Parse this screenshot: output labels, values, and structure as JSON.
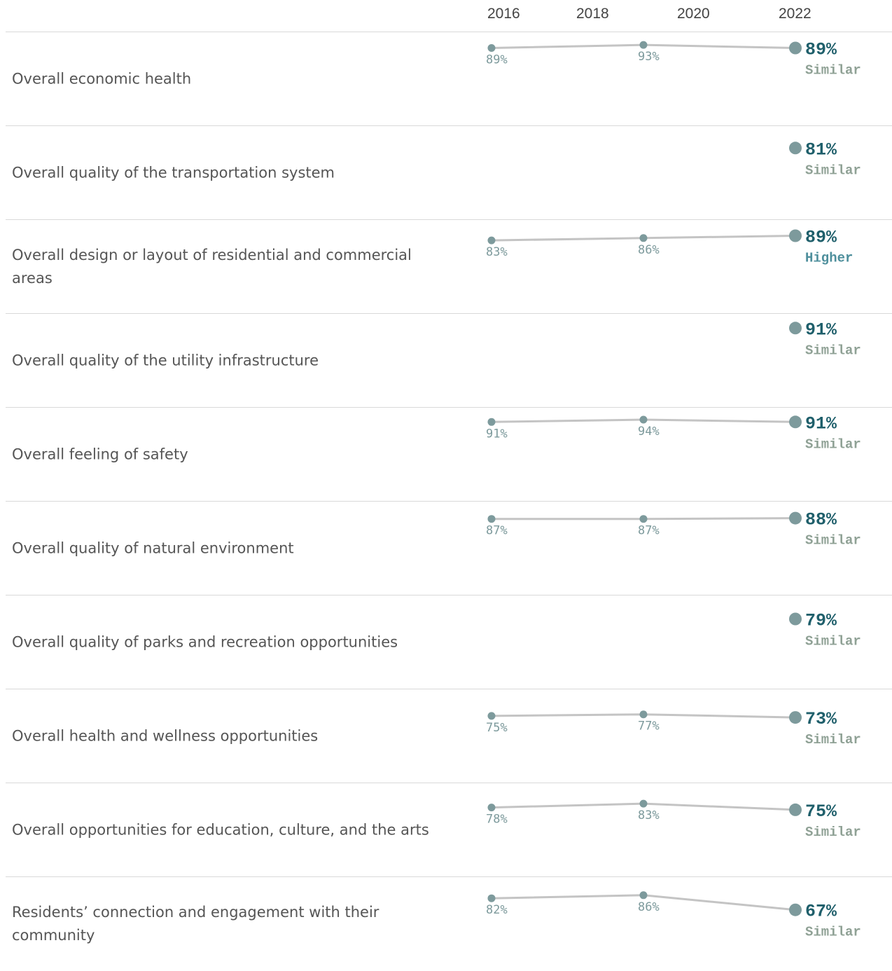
{
  "chart_data": {
    "type": "line",
    "x": [
      "2016",
      "2019",
      "2022"
    ],
    "x_tick_labels": [
      "2016",
      "2018",
      "2020",
      "2022"
    ],
    "rows": [
      {
        "label": "Overall economic health",
        "values": [
          89,
          93,
          89
        ],
        "value_labels": [
          "89%",
          "93%",
          "89%"
        ],
        "comparison": "Similar"
      },
      {
        "label": "Overall quality of the transportation system",
        "values": [
          null,
          null,
          81
        ],
        "value_labels": [
          null,
          null,
          "81%"
        ],
        "comparison": "Similar"
      },
      {
        "label": "Overall design or layout of residential and commercial areas",
        "values": [
          83,
          86,
          89
        ],
        "value_labels": [
          "83%",
          "86%",
          "89%"
        ],
        "comparison": "Higher"
      },
      {
        "label": "Overall quality of the utility infrastructure",
        "values": [
          null,
          null,
          91
        ],
        "value_labels": [
          null,
          null,
          "91%"
        ],
        "comparison": "Similar"
      },
      {
        "label": "Overall feeling of safety",
        "values": [
          91,
          94,
          91
        ],
        "value_labels": [
          "91%",
          "94%",
          "91%"
        ],
        "comparison": "Similar"
      },
      {
        "label": "Overall quality of natural environment",
        "values": [
          87,
          87,
          88
        ],
        "value_labels": [
          "87%",
          "87%",
          "88%"
        ],
        "comparison": "Similar"
      },
      {
        "label": "Overall quality of parks and recreation opportunities",
        "values": [
          null,
          null,
          79
        ],
        "value_labels": [
          null,
          null,
          "79%"
        ],
        "comparison": "Similar"
      },
      {
        "label": "Overall health and wellness opportunities",
        "values": [
          75,
          77,
          73
        ],
        "value_labels": [
          "75%",
          "77%",
          "73%"
        ],
        "comparison": "Similar"
      },
      {
        "label": "Overall opportunities for education, culture, and the arts",
        "values": [
          78,
          83,
          75
        ],
        "value_labels": [
          "78%",
          "83%",
          "75%"
        ],
        "comparison": "Similar"
      },
      {
        "label": "Residents’ connection and engagement with their community",
        "values": [
          82,
          86,
          67
        ],
        "value_labels": [
          "82%",
          "86%",
          "67%"
        ],
        "comparison": "Similar"
      }
    ],
    "colors": {
      "line": "#c4c4c4",
      "point": "#7d9a9c",
      "value_text": "#1f5f6b",
      "similar_text": "#8fa195",
      "higher_text": "#4e8f9c"
    },
    "grid": false,
    "legend": "none"
  }
}
